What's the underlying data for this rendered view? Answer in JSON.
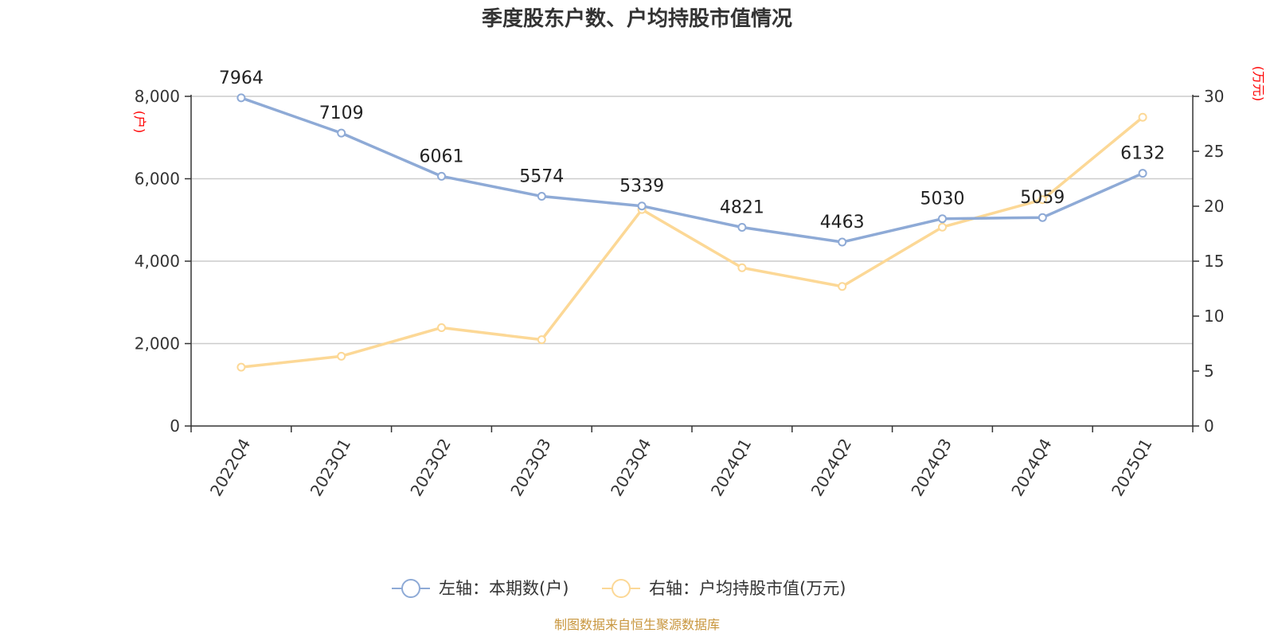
{
  "chart_data": {
    "type": "line",
    "title": "季度股东户数、户均持股市值情况",
    "categories": [
      "2022Q4",
      "2023Q1",
      "2023Q2",
      "2023Q3",
      "2023Q4",
      "2024Q1",
      "2024Q2",
      "2024Q3",
      "2024Q4",
      "2025Q1"
    ],
    "left_axis": {
      "unit": "(户)",
      "range": [
        0,
        8000
      ],
      "ticks": [
        0,
        2000,
        4000,
        6000,
        8000
      ],
      "tick_labels": [
        "0",
        "2,000",
        "4,000",
        "6,000",
        "8,000"
      ]
    },
    "right_axis": {
      "unit": "(万元)",
      "range": [
        0,
        30
      ],
      "ticks": [
        0,
        5,
        10,
        15,
        20,
        25,
        30
      ],
      "tick_labels": [
        "0",
        "5",
        "10",
        "15",
        "20",
        "25",
        "30"
      ]
    },
    "series": [
      {
        "name": "左轴：本期数(户)",
        "axis": "left",
        "color": "#8eaad6",
        "values": [
          7964,
          7109,
          6061,
          5574,
          5339,
          4821,
          4463,
          5030,
          5059,
          6132
        ],
        "labels": [
          "7964",
          "7109",
          "6061",
          "5574",
          "5339",
          "4821",
          "4463",
          "5030",
          "5059",
          "6132"
        ]
      },
      {
        "name": "右轴：户均持股市值(万元)",
        "axis": "right",
        "color": "#fcd896",
        "values": [
          5.35,
          6.35,
          8.95,
          7.85,
          19.7,
          14.4,
          12.7,
          18.1,
          20.6,
          28.1
        ]
      }
    ],
    "grid": true,
    "legend_position": "bottom",
    "source": "制图数据来自恒生聚源数据库"
  }
}
